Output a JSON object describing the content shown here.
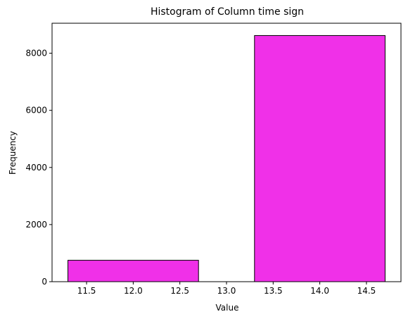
{
  "chart_data": {
    "type": "bar",
    "title": "Histogram of Column time sign",
    "xlabel": "Value",
    "ylabel": "Frequency",
    "bins": [
      {
        "start": 11.3,
        "end": 12.7,
        "value": 750
      },
      {
        "start": 13.3,
        "end": 14.7,
        "value": 8620
      }
    ],
    "xlim": [
      11.13,
      14.87
    ],
    "ylim": [
      0,
      9050
    ],
    "xticks": [
      11.5,
      12.0,
      12.5,
      13.0,
      13.5,
      14.0,
      14.5
    ],
    "xtick_labels": [
      "11.5",
      "12.0",
      "12.5",
      "13.0",
      "13.5",
      "14.0",
      "14.5"
    ],
    "yticks": [
      0,
      2000,
      4000,
      6000,
      8000
    ],
    "ytick_labels": [
      "0",
      "2000",
      "4000",
      "6000",
      "8000"
    ],
    "grid": false,
    "colors": {
      "bar_fill": "#f030e8",
      "bar_edge": "#000000"
    }
  }
}
